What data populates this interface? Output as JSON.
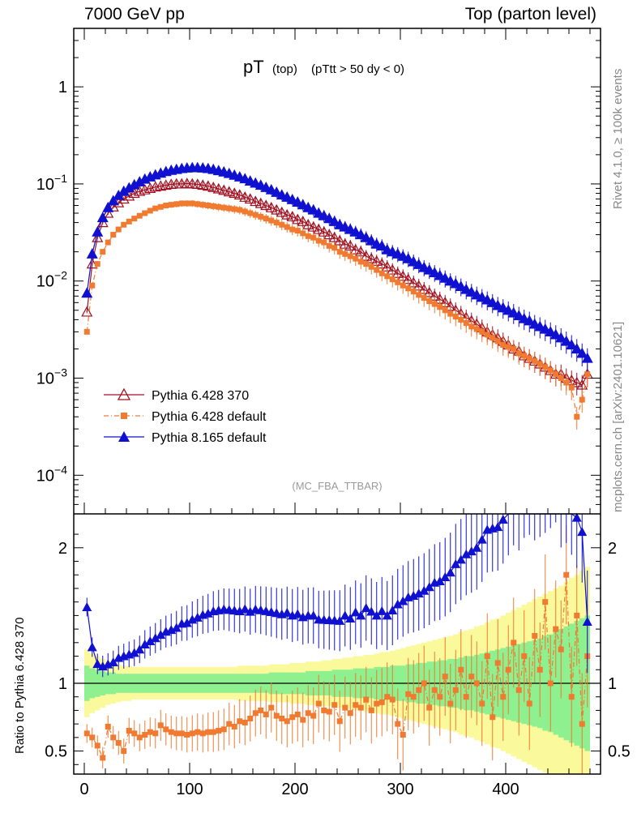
{
  "header": {
    "left": "7000 GeV pp",
    "right": "Top (parton level)"
  },
  "side_text": {
    "rivet": "Rivet 4.1.0, ≥ 100k events",
    "mcplots": "mcplots.cern.ch [arXiv:2401.10621]"
  },
  "chart_data": {
    "type": "line",
    "title_main": "pT",
    "title_sub1": "(top)",
    "title_sub2": "(pTtt > 50 dy < 0)",
    "watermark": "(MC_FBA_TTBAR)",
    "xlabel": "",
    "xlim": [
      -10,
      490
    ],
    "xticks": [
      0,
      100,
      200,
      300,
      400
    ],
    "top_panel": {
      "ylog": true,
      "ylim": [
        4e-05,
        4
      ],
      "yticks": [
        {
          "value": 1,
          "base": "1",
          "exp": ""
        },
        {
          "value": 0.1,
          "base": "10",
          "exp": "−1"
        },
        {
          "value": 0.01,
          "base": "10",
          "exp": "−2"
        },
        {
          "value": 0.001,
          "base": "10",
          "exp": "−3"
        },
        {
          "value": 0.0001,
          "base": "10",
          "exp": "−4"
        }
      ]
    },
    "ratio_panel": {
      "ylabel": "Ratio to Pythia 6.428 370",
      "ylim": [
        0.33,
        2.25
      ],
      "yticks": [
        0.5,
        1,
        2
      ],
      "ytick_labels": [
        "0.5",
        "1",
        "2"
      ],
      "band_center": 1
    },
    "x": [
      2.5,
      7.5,
      12.5,
      17.5,
      22.5,
      27.5,
      32.5,
      37.5,
      42.5,
      47.5,
      52.5,
      57.5,
      62.5,
      67.5,
      72.5,
      77.5,
      82.5,
      87.5,
      92.5,
      97.5,
      102.5,
      107.5,
      112.5,
      117.5,
      122.5,
      127.5,
      132.5,
      137.5,
      142.5,
      147.5,
      152.5,
      157.5,
      162.5,
      167.5,
      172.5,
      177.5,
      182.5,
      187.5,
      192.5,
      197.5,
      202.5,
      207.5,
      212.5,
      217.5,
      222.5,
      227.5,
      232.5,
      237.5,
      242.5,
      247.5,
      252.5,
      257.5,
      262.5,
      267.5,
      272.5,
      277.5,
      282.5,
      287.5,
      292.5,
      297.5,
      302.5,
      307.5,
      312.5,
      317.5,
      322.5,
      327.5,
      332.5,
      337.5,
      342.5,
      347.5,
      352.5,
      357.5,
      362.5,
      367.5,
      372.5,
      377.5,
      382.5,
      387.5,
      392.5,
      397.5,
      402.5,
      407.5,
      412.5,
      417.5,
      422.5,
      427.5,
      432.5,
      437.5,
      442.5,
      447.5,
      452.5,
      457.5,
      462.5,
      467.5,
      472.5,
      477.5
    ],
    "series": [
      {
        "name": "Pythia 6.428 370",
        "color": "#a01020",
        "marker": "open-triangle",
        "line": "solid",
        "values": [
          0.0048,
          0.015,
          0.028,
          0.04,
          0.05,
          0.058,
          0.064,
          0.07,
          0.075,
          0.08,
          0.084,
          0.087,
          0.09,
          0.093,
          0.095,
          0.097,
          0.099,
          0.1,
          0.1,
          0.101,
          0.1,
          0.099,
          0.097,
          0.095,
          0.092,
          0.089,
          0.086,
          0.083,
          0.08,
          0.077,
          0.073,
          0.07,
          0.066,
          0.063,
          0.06,
          0.057,
          0.054,
          0.051,
          0.048,
          0.046,
          0.043,
          0.041,
          0.038,
          0.036,
          0.034,
          0.032,
          0.03,
          0.028,
          0.026,
          0.024,
          0.023,
          0.021,
          0.02,
          0.018,
          0.017,
          0.016,
          0.015,
          0.014,
          0.013,
          0.012,
          0.0112,
          0.0104,
          0.0096,
          0.0089,
          0.0082,
          0.0076,
          0.007,
          0.0065,
          0.006,
          0.0055,
          0.005,
          0.0046,
          0.0042,
          0.0039,
          0.0036,
          0.0033,
          0.003,
          0.0028,
          0.0026,
          0.0024,
          0.0022,
          0.002,
          0.0019,
          0.0017,
          0.0016,
          0.0015,
          0.0014,
          0.0013,
          0.0012,
          0.0011,
          0.0011,
          0.001,
          0.00095,
          0.0009,
          0.00085,
          0.0011
        ]
      },
      {
        "name": "Pythia 6.428 default",
        "color": "#f07a30",
        "marker": "square",
        "line": "dashdot",
        "values": [
          0.003,
          0.009,
          0.015,
          0.02,
          0.025,
          0.03,
          0.034,
          0.038,
          0.041,
          0.044,
          0.047,
          0.05,
          0.053,
          0.056,
          0.058,
          0.06,
          0.061,
          0.062,
          0.063,
          0.063,
          0.063,
          0.062,
          0.061,
          0.06,
          0.059,
          0.058,
          0.057,
          0.056,
          0.055,
          0.054,
          0.052,
          0.05,
          0.048,
          0.046,
          0.044,
          0.042,
          0.04,
          0.038,
          0.036,
          0.034,
          0.033,
          0.031,
          0.029,
          0.028,
          0.026,
          0.025,
          0.023,
          0.022,
          0.02,
          0.019,
          0.018,
          0.017,
          0.0158,
          0.015,
          0.014,
          0.013,
          0.012,
          0.0112,
          0.0104,
          0.0097,
          0.009,
          0.0084,
          0.0078,
          0.0072,
          0.0067,
          0.0062,
          0.0058,
          0.0054,
          0.005,
          0.0046,
          0.0043,
          0.004,
          0.0037,
          0.0034,
          0.0032,
          0.003,
          0.0028,
          0.0026,
          0.0024,
          0.0022,
          0.0021,
          0.002,
          0.0018,
          0.0017,
          0.0016,
          0.0015,
          0.0014,
          0.0013,
          0.0012,
          0.0011,
          0.001,
          0.0009,
          0.0008,
          0.0004,
          0.0006,
          0.0011
        ]
      },
      {
        "name": "Pythia 8.165 default",
        "color": "#1010d0",
        "marker": "filled-triangle",
        "line": "solid",
        "values": [
          0.0075,
          0.019,
          0.032,
          0.045,
          0.057,
          0.067,
          0.076,
          0.084,
          0.091,
          0.098,
          0.105,
          0.112,
          0.118,
          0.124,
          0.129,
          0.134,
          0.138,
          0.141,
          0.144,
          0.146,
          0.147,
          0.147,
          0.146,
          0.144,
          0.141,
          0.137,
          0.133,
          0.128,
          0.123,
          0.118,
          0.113,
          0.107,
          0.102,
          0.097,
          0.092,
          0.087,
          0.082,
          0.077,
          0.073,
          0.069,
          0.065,
          0.061,
          0.057,
          0.054,
          0.05,
          0.047,
          0.044,
          0.041,
          0.038,
          0.036,
          0.034,
          0.032,
          0.03,
          0.028,
          0.026,
          0.024,
          0.023,
          0.021,
          0.02,
          0.019,
          0.018,
          0.017,
          0.0158,
          0.0148,
          0.0138,
          0.013,
          0.0122,
          0.0114,
          0.0107,
          0.01,
          0.0094,
          0.0088,
          0.0082,
          0.0077,
          0.0072,
          0.0068,
          0.0064,
          0.006,
          0.0056,
          0.0053,
          0.005,
          0.0047,
          0.0044,
          0.0041,
          0.0039,
          0.0036,
          0.0034,
          0.0032,
          0.003,
          0.0028,
          0.0026,
          0.0024,
          0.0022,
          0.002,
          0.0018,
          0.0016
        ]
      }
    ],
    "ratio_values": {
      "Pythia 6.428 default": [
        0.63,
        0.6,
        0.54,
        0.45,
        0.68,
        0.6,
        0.56,
        0.5,
        0.65,
        0.63,
        0.6,
        0.62,
        0.64,
        0.63,
        0.69,
        0.66,
        0.64,
        0.63,
        0.63,
        0.62,
        0.63,
        0.64,
        0.63,
        0.64,
        0.64,
        0.65,
        0.66,
        0.7,
        0.68,
        0.72,
        0.71,
        0.74,
        0.78,
        0.8,
        0.77,
        0.82,
        0.76,
        0.74,
        0.72,
        0.75,
        0.77,
        0.73,
        0.78,
        0.76,
        0.85,
        0.8,
        0.79,
        0.84,
        0.72,
        0.82,
        0.78,
        0.84,
        0.82,
        0.88,
        0.8,
        0.85,
        0.86,
        0.9,
        0.88,
        0.7,
        0.62,
        0.92,
        0.9,
        0.95,
        1.0,
        0.82,
        0.95,
        0.9,
        1.05,
        0.85,
        0.95,
        1.1,
        0.9,
        1.05,
        1.0,
        0.85,
        1.2,
        0.75,
        1.15,
        0.9,
        1.1,
        1.3,
        0.95,
        1.2,
        0.85,
        1.35,
        1.1,
        1.6,
        1.0,
        1.4,
        1.25,
        1.8,
        0.9,
        1.5,
        0.7,
        1.2
      ]
    },
    "ratio_band_inner": [
      0.13,
      0.11,
      0.1,
      0.09,
      0.08,
      0.08,
      0.07,
      0.07,
      0.07,
      0.07,
      0.07,
      0.07,
      0.07,
      0.07,
      0.07,
      0.07,
      0.07,
      0.07,
      0.07,
      0.07,
      0.07,
      0.07,
      0.07,
      0.07,
      0.07,
      0.07,
      0.07,
      0.07,
      0.07,
      0.07,
      0.07,
      0.07,
      0.07,
      0.07,
      0.07,
      0.08,
      0.08,
      0.08,
      0.08,
      0.08,
      0.08,
      0.08,
      0.09,
      0.09,
      0.09,
      0.09,
      0.09,
      0.1,
      0.1,
      0.1,
      0.1,
      0.11,
      0.11,
      0.11,
      0.11,
      0.12,
      0.12,
      0.12,
      0.13,
      0.13,
      0.13,
      0.14,
      0.14,
      0.15,
      0.15,
      0.16,
      0.16,
      0.17,
      0.17,
      0.18,
      0.18,
      0.19,
      0.2,
      0.2,
      0.21,
      0.22,
      0.23,
      0.24,
      0.25,
      0.26,
      0.27,
      0.28,
      0.29,
      0.3,
      0.31,
      0.32,
      0.33,
      0.35,
      0.36,
      0.38,
      0.4,
      0.42,
      0.44,
      0.46,
      0.48,
      0.5
    ],
    "ratio_band_outer": [
      0.25,
      0.22,
      0.2,
      0.18,
      0.16,
      0.15,
      0.14,
      0.13,
      0.13,
      0.12,
      0.12,
      0.12,
      0.12,
      0.12,
      0.12,
      0.12,
      0.12,
      0.12,
      0.12,
      0.12,
      0.12,
      0.12,
      0.12,
      0.12,
      0.12,
      0.12,
      0.12,
      0.12,
      0.12,
      0.13,
      0.13,
      0.13,
      0.13,
      0.13,
      0.13,
      0.14,
      0.14,
      0.14,
      0.14,
      0.15,
      0.15,
      0.15,
      0.16,
      0.16,
      0.16,
      0.17,
      0.17,
      0.18,
      0.18,
      0.19,
      0.19,
      0.2,
      0.2,
      0.21,
      0.21,
      0.22,
      0.23,
      0.23,
      0.24,
      0.25,
      0.26,
      0.27,
      0.28,
      0.29,
      0.3,
      0.31,
      0.32,
      0.33,
      0.34,
      0.35,
      0.36,
      0.38,
      0.39,
      0.4,
      0.42,
      0.43,
      0.45,
      0.47,
      0.48,
      0.5,
      0.52,
      0.54,
      0.56,
      0.58,
      0.6,
      0.62,
      0.64,
      0.66,
      0.68,
      0.7,
      0.72,
      0.75,
      0.78,
      0.8,
      0.83,
      0.86
    ]
  }
}
